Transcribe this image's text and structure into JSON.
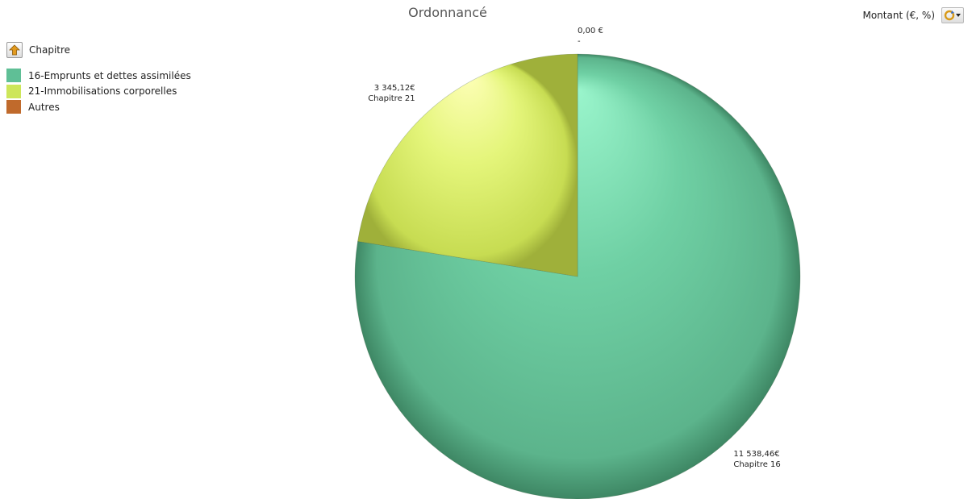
{
  "chart_data": {
    "type": "pie",
    "title": "Ordonnancé",
    "measure_label": "Montant (€, %)",
    "legend_title": "Chapitre",
    "legend": [
      {
        "label": "16-Emprunts et dettes assimilées",
        "color": "#5fbf96"
      },
      {
        "label": "21-Immobilisations corporelles",
        "color": "#cde65a"
      },
      {
        "label": "Autres",
        "color": "#c06a2c"
      }
    ],
    "slices": [
      {
        "value": 0,
        "value_label": "0,00 €",
        "category_label": "-",
        "color": "#c06a2c"
      },
      {
        "value": 11538.46,
        "value_label": "11 538,46€",
        "category_label": "Chapitre 16",
        "color": "#5fbf96"
      },
      {
        "value": 3345.12,
        "value_label": "3 345,12€",
        "category_label": "Chapitre 21",
        "color": "#cde65a"
      }
    ]
  }
}
